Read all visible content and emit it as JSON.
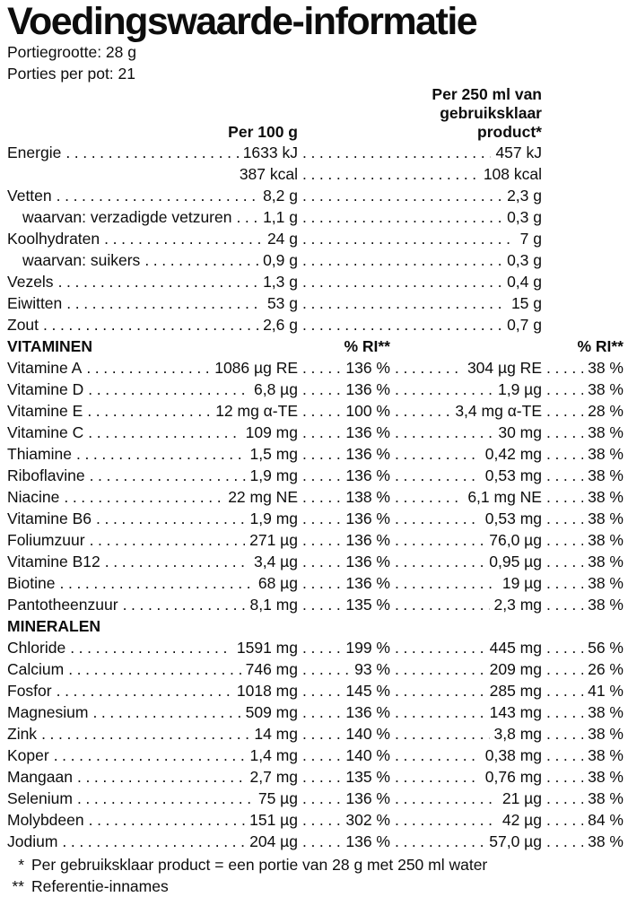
{
  "title": "Voedingswaarde-informatie",
  "serving_info": {
    "portion_size": "Portiegrootte: 28 g",
    "portions_per_jar": "Porties per pot: 21"
  },
  "column_headers": {
    "per_100g": "Per 100 g",
    "per_250ml_lines": [
      "Per 250 ml van",
      "gebruiksklaar",
      "product*"
    ],
    "ri_label": "% RI**"
  },
  "macros": {
    "rows": [
      {
        "label": "Energie",
        "per100": "1633 kJ",
        "per250": "457 kJ",
        "indent": false
      },
      {
        "label": "",
        "per100": "387 kcal",
        "per250": "108 kcal",
        "indent": false
      },
      {
        "label": "Vetten",
        "per100": "8,2 g",
        "per250": "2,3 g",
        "indent": false
      },
      {
        "label": "waarvan: verzadigde vetzuren",
        "per100": "1,1 g",
        "per250": "0,3 g",
        "indent": true
      },
      {
        "label": "Koolhydraten",
        "per100": "24 g",
        "per250": "7 g",
        "indent": false
      },
      {
        "label": "waarvan: suikers",
        "per100": "0,9 g",
        "per250": "0,3 g",
        "indent": true
      },
      {
        "label": "Vezels",
        "per100": "1,3 g",
        "per250": "0,4 g",
        "indent": false
      },
      {
        "label": "Eiwitten",
        "per100": "53 g",
        "per250": "15 g",
        "indent": false
      },
      {
        "label": "Zout",
        "per100": "2,6 g",
        "per250": "0,7 g",
        "indent": false
      }
    ]
  },
  "vitamins": {
    "header": "VITAMINEN",
    "rows": [
      {
        "label": "Vitamine A",
        "per100": "1086 µg RE",
        "ri100": "136 %",
        "per250": "304 µg RE",
        "ri250": "38 %"
      },
      {
        "label": "Vitamine D",
        "per100": "6,8 µg",
        "ri100": "136 %",
        "per250": "1,9 µg",
        "ri250": "38 %"
      },
      {
        "label": "Vitamine E",
        "per100": "12 mg α-TE",
        "ri100": "100 %",
        "per250": "3,4 mg α-TE",
        "ri250": "28 %"
      },
      {
        "label": "Vitamine C",
        "per100": "109 mg",
        "ri100": "136 %",
        "per250": "30 mg",
        "ri250": "38 %"
      },
      {
        "label": "Thiamine",
        "per100": "1,5 mg",
        "ri100": "136 %",
        "per250": "0,42 mg",
        "ri250": "38 %"
      },
      {
        "label": "Riboflavine",
        "per100": "1,9 mg",
        "ri100": "136 %",
        "per250": "0,53 mg",
        "ri250": "38 %"
      },
      {
        "label": "Niacine",
        "per100": "22 mg NE",
        "ri100": "138 %",
        "per250": "6,1 mg NE",
        "ri250": "38 %"
      },
      {
        "label": "Vitamine B6",
        "per100": "1,9 mg",
        "ri100": "136 %",
        "per250": "0,53 mg",
        "ri250": "38 %"
      },
      {
        "label": "Foliumzuur",
        "per100": "271 µg",
        "ri100": "136 %",
        "per250": "76,0 µg",
        "ri250": "38 %"
      },
      {
        "label": "Vitamine B12",
        "per100": "3,4 µg",
        "ri100": "136 %",
        "per250": "0,95 µg",
        "ri250": "38 %"
      },
      {
        "label": "Biotine",
        "per100": "68 µg",
        "ri100": "136 %",
        "per250": "19 µg",
        "ri250": "38 %"
      },
      {
        "label": "Pantotheenzuur",
        "per100": "8,1 mg",
        "ri100": "135 %",
        "per250": "2,3 mg",
        "ri250": "38 %"
      }
    ]
  },
  "minerals": {
    "header": "MINERALEN",
    "rows": [
      {
        "label": "Chloride",
        "per100": "1591 mg",
        "ri100": "199 %",
        "per250": "445 mg",
        "ri250": "56 %"
      },
      {
        "label": "Calcium",
        "per100": "746 mg",
        "ri100": "93 %",
        "per250": "209 mg",
        "ri250": "26 %"
      },
      {
        "label": "Fosfor",
        "per100": "1018 mg",
        "ri100": "145 %",
        "per250": "285 mg",
        "ri250": "41 %"
      },
      {
        "label": "Magnesium",
        "per100": "509 mg",
        "ri100": "136 %",
        "per250": "143 mg",
        "ri250": "38 %"
      },
      {
        "label": "Zink",
        "per100": "14 mg",
        "ri100": "140 %",
        "per250": "3,8 mg",
        "ri250": "38 %"
      },
      {
        "label": "Koper",
        "per100": "1,4 mg",
        "ri100": "140 %",
        "per250": "0,38 mg",
        "ri250": "38 %"
      },
      {
        "label": "Mangaan",
        "per100": "2,7 mg",
        "ri100": "135 %",
        "per250": "0,76 mg",
        "ri250": "38 %"
      },
      {
        "label": "Selenium",
        "per100": "75 µg",
        "ri100": "136 %",
        "per250": "21 µg",
        "ri250": "38 %"
      },
      {
        "label": "Molybdeen",
        "per100": "151 µg",
        "ri100": "302 %",
        "per250": "42 µg",
        "ri250": "84 %"
      },
      {
        "label": "Jodium",
        "per100": "204 µg",
        "ri100": "136 %",
        "per250": "57,0 µg",
        "ri250": "38 %"
      }
    ]
  },
  "footnotes": [
    {
      "marker": "*",
      "text": "Per gebruiksklaar product = een portie van 28 g met 250 ml water"
    },
    {
      "marker": "**",
      "text": "Referentie-innames"
    }
  ]
}
